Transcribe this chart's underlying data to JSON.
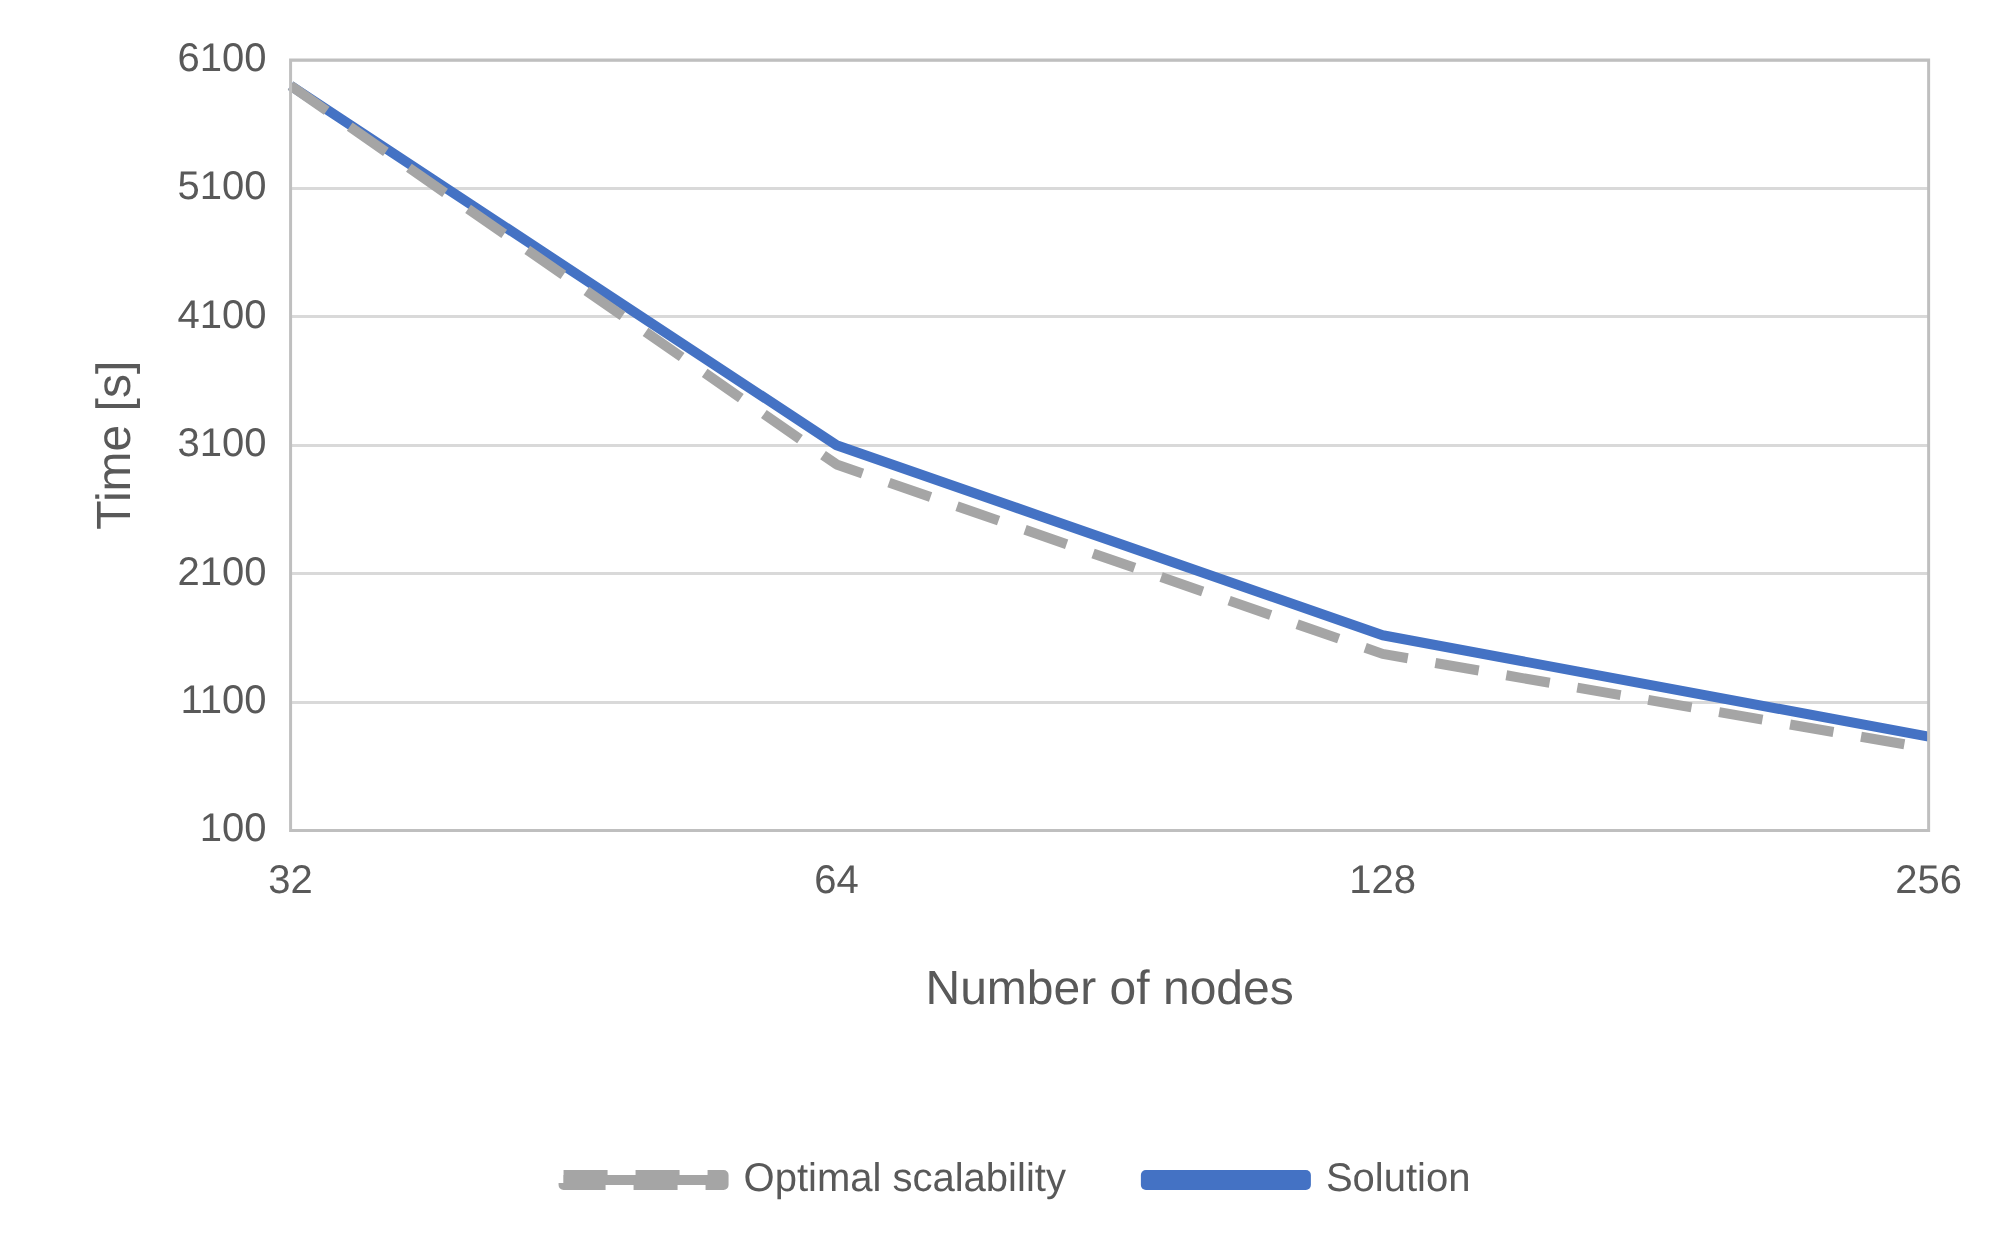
{
  "chart_data": {
    "type": "line",
    "xlabel": "Number of nodes",
    "ylabel": "Time [s]",
    "categories": [
      "32",
      "64",
      "128",
      "256"
    ],
    "series": [
      {
        "name": "Optimal scalability",
        "color": "#a5a5a5",
        "line_style": "dashed",
        "values": [
          5900,
          2950,
          1475,
          738
        ]
      },
      {
        "name": "Solution",
        "color": "#4472c4",
        "line_style": "solid",
        "values": [
          5900,
          3100,
          1620,
          830
        ]
      }
    ],
    "ylim": [
      100,
      6100
    ],
    "yticks": [
      100,
      1100,
      2100,
      3100,
      4100,
      5100,
      6100
    ],
    "grid": "y",
    "legend": "bottom",
    "marker": "none"
  }
}
